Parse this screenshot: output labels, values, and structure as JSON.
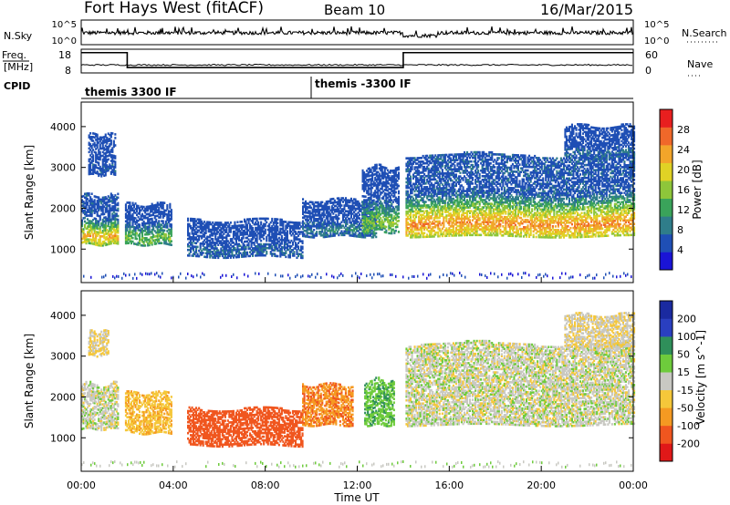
{
  "header": {
    "station": "Fort Hays West (fitACF)",
    "beam": "Beam 10",
    "date": "16/Mar/2015"
  },
  "top_strip": {
    "nsky_label": "N.Sky",
    "nsearch_label": "N.Search",
    "left_ticks": [
      "10^5",
      "10^0"
    ],
    "right_ticks": [
      "10^5",
      "10^0"
    ]
  },
  "freq_strip": {
    "label_line1": "Freq.",
    "label_line2": "[MHz]",
    "left_ticks": [
      "18",
      "8"
    ],
    "nave_label": "Nave",
    "right_ticks": [
      "60",
      "0"
    ],
    "freq_level": [
      {
        "from_h": 0,
        "to_h": 2.0,
        "level": 0.92
      },
      {
        "from_h": 2.0,
        "to_h": 14.0,
        "level": 0.18
      },
      {
        "from_h": 14.0,
        "to_h": 24.0,
        "level": 0.92
      }
    ]
  },
  "cpid": {
    "label": "CPID",
    "modes": [
      {
        "start_h": 0,
        "label": "themis 3300 IF"
      },
      {
        "start_h": 10.0,
        "label": "themis -3300 IF"
      }
    ]
  },
  "chart_data": [
    {
      "type": "heatmap",
      "title": "Power",
      "xlabel": "",
      "ylabel": "Slant Range [km]",
      "x_range_hours": [
        0,
        24
      ],
      "ylim": [
        180,
        4600
      ],
      "y_ticks": [
        1000,
        2000,
        3000,
        4000
      ],
      "colorbar": {
        "label": "Power [dB]",
        "ticks": [
          "4",
          "8",
          "12",
          "16",
          "20",
          "24",
          "28"
        ],
        "colors": [
          "#1a14d6",
          "#1f4fb5",
          "#2f7d8a",
          "#3aa35a",
          "#8ec63a",
          "#e0d225",
          "#f2a52a",
          "#f0682a",
          "#e81f1f"
        ]
      },
      "echo_bands": [
        {
          "start_h": 0.0,
          "end_h": 1.6,
          "range_low_km": 1100,
          "range_high_km": 2300,
          "peak_dB": 24
        },
        {
          "start_h": 1.9,
          "end_h": 3.9,
          "range_low_km": 1100,
          "range_high_km": 2100,
          "peak_dB": 16
        },
        {
          "start_h": 4.6,
          "end_h": 9.6,
          "range_low_km": 800,
          "range_high_km": 1700,
          "peak_dB": 6
        },
        {
          "start_h": 9.6,
          "end_h": 12.8,
          "range_low_km": 1300,
          "range_high_km": 2200,
          "peak_dB": 8
        },
        {
          "start_h": 12.2,
          "end_h": 13.8,
          "range_low_km": 1400,
          "range_high_km": 3000,
          "peak_dB": 16
        },
        {
          "start_h": 14.1,
          "end_h": 24.0,
          "range_low_km": 1300,
          "range_high_km": 3300,
          "peak_dB": 26
        },
        {
          "start_h": 21.0,
          "end_h": 24.0,
          "range_low_km": 3200,
          "range_high_km": 4000,
          "peak_dB": 6
        },
        {
          "start_h": 0.3,
          "end_h": 1.5,
          "range_low_km": 2800,
          "range_high_km": 3800,
          "peak_dB": 4
        }
      ]
    },
    {
      "type": "heatmap",
      "title": "Velocity",
      "xlabel": "Time UT",
      "ylabel": "Slant Range [km]",
      "x_range_hours": [
        0,
        24
      ],
      "x_tick_labels": [
        "00:00",
        "04:00",
        "08:00",
        "12:00",
        "16:00",
        "20:00",
        "00:00"
      ],
      "ylim": [
        180,
        4600
      ],
      "y_ticks": [
        1000,
        2000,
        3000,
        4000
      ],
      "colorbar": {
        "label": "Velocity [m s^-1]",
        "ticks": [
          "-200",
          "-100",
          "-50",
          "-15",
          "15",
          "50",
          "100",
          "200"
        ],
        "colors": [
          "#e01818",
          "#f0561f",
          "#f59a22",
          "#f5c73a",
          "#c8c8c2",
          "#6ecb3c",
          "#2f8f5a",
          "#2a3fc0",
          "#1a2aa0"
        ]
      },
      "echo_bands": [
        {
          "start_h": 0.0,
          "end_h": 1.6,
          "range_low_km": 1200,
          "range_high_km": 2300,
          "velocity": 0
        },
        {
          "start_h": 1.9,
          "end_h": 3.9,
          "range_low_km": 1100,
          "range_high_km": 2100,
          "velocity": -40
        },
        {
          "start_h": 4.6,
          "end_h": 9.6,
          "range_low_km": 800,
          "range_high_km": 1700,
          "velocity": -140
        },
        {
          "start_h": 9.6,
          "end_h": 11.8,
          "range_low_km": 1300,
          "range_high_km": 2300,
          "velocity": -90
        },
        {
          "start_h": 12.3,
          "end_h": 13.6,
          "range_low_km": 1300,
          "range_high_km": 2400,
          "velocity": 40
        },
        {
          "start_h": 14.1,
          "end_h": 24.0,
          "range_low_km": 1300,
          "range_high_km": 3300,
          "velocity": 0
        },
        {
          "start_h": 21.0,
          "end_h": 24.0,
          "range_low_km": 3200,
          "range_high_km": 4000,
          "velocity": -10
        },
        {
          "start_h": 0.3,
          "end_h": 1.2,
          "range_low_km": 3000,
          "range_high_km": 3600,
          "velocity": -20
        }
      ]
    }
  ]
}
